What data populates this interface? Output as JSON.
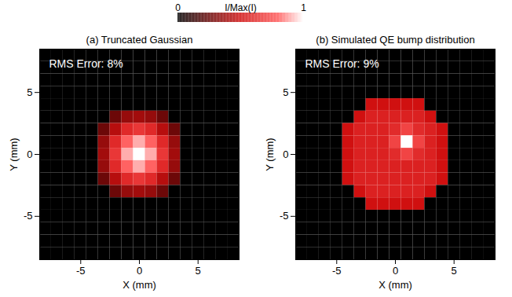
{
  "colorbar": {
    "label": "I/Max(I)",
    "range": [
      0,
      1
    ],
    "ticks": [
      0,
      1
    ]
  },
  "chart_data": [
    {
      "type": "heatmap",
      "title": "(a) Truncated Gaussian",
      "x_label": "X (mm)",
      "y_label": "Y (mm)",
      "annotation": "RMS Error: 8%",
      "xlim": [
        -8.5,
        8.5
      ],
      "ylim": [
        -8.5,
        8.5
      ],
      "xticks": [
        -5,
        0,
        5
      ],
      "yticks": [
        -5,
        0,
        5
      ],
      "x": [
        -8,
        -7,
        -6,
        -5,
        -4,
        -3,
        -2,
        -1,
        0,
        1,
        2,
        3,
        4,
        5,
        6,
        7,
        8
      ],
      "y": [
        8,
        7,
        6,
        5,
        4,
        3,
        2,
        1,
        0,
        -1,
        -2,
        -3,
        -4,
        -5,
        -6,
        -7,
        -8
      ],
      "values": [
        [
          0,
          0,
          0,
          0,
          0,
          0,
          0,
          0,
          0,
          0,
          0,
          0,
          0,
          0,
          0,
          0,
          0
        ],
        [
          0,
          0,
          0,
          0,
          0,
          0,
          0,
          0,
          0,
          0,
          0,
          0,
          0,
          0,
          0,
          0,
          0
        ],
        [
          0,
          0,
          0,
          0,
          0,
          0,
          0,
          0,
          0,
          0,
          0,
          0,
          0,
          0,
          0,
          0,
          0
        ],
        [
          0,
          0,
          0,
          0,
          0,
          0,
          0,
          0,
          0,
          0,
          0,
          0,
          0,
          0,
          0,
          0,
          0
        ],
        [
          0,
          0,
          0,
          0,
          0,
          0,
          0,
          0,
          0,
          0,
          0,
          0,
          0,
          0,
          0,
          0,
          0
        ],
        [
          0,
          0,
          0,
          0,
          0,
          0,
          0.26,
          0.36,
          0.39,
          0.36,
          0.26,
          0,
          0,
          0,
          0,
          0,
          0
        ],
        [
          0,
          0,
          0,
          0,
          0,
          0.26,
          0.44,
          0.6,
          0.66,
          0.6,
          0.44,
          0.26,
          0,
          0,
          0,
          0,
          0
        ],
        [
          0,
          0,
          0,
          0,
          0,
          0.36,
          0.6,
          0.81,
          0.9,
          0.81,
          0.6,
          0.36,
          0,
          0,
          0,
          0,
          0
        ],
        [
          0,
          0,
          0,
          0,
          0,
          0.39,
          0.66,
          0.9,
          1,
          0.9,
          0.66,
          0.39,
          0,
          0,
          0,
          0,
          0
        ],
        [
          0,
          0,
          0,
          0,
          0,
          0.36,
          0.6,
          0.81,
          0.9,
          0.81,
          0.6,
          0.36,
          0,
          0,
          0,
          0,
          0
        ],
        [
          0,
          0,
          0,
          0,
          0,
          0.26,
          0.44,
          0.6,
          0.66,
          0.6,
          0.44,
          0.26,
          0,
          0,
          0,
          0,
          0
        ],
        [
          0,
          0,
          0,
          0,
          0,
          0,
          0.26,
          0.36,
          0.39,
          0.36,
          0.26,
          0,
          0,
          0,
          0,
          0,
          0
        ],
        [
          0,
          0,
          0,
          0,
          0,
          0,
          0,
          0,
          0,
          0,
          0,
          0,
          0,
          0,
          0,
          0,
          0
        ],
        [
          0,
          0,
          0,
          0,
          0,
          0,
          0,
          0,
          0,
          0,
          0,
          0,
          0,
          0,
          0,
          0,
          0
        ],
        [
          0,
          0,
          0,
          0,
          0,
          0,
          0,
          0,
          0,
          0,
          0,
          0,
          0,
          0,
          0,
          0,
          0
        ],
        [
          0,
          0,
          0,
          0,
          0,
          0,
          0,
          0,
          0,
          0,
          0,
          0,
          0,
          0,
          0,
          0,
          0
        ],
        [
          0,
          0,
          0,
          0,
          0,
          0,
          0,
          0,
          0,
          0,
          0,
          0,
          0,
          0,
          0,
          0,
          0
        ]
      ]
    },
    {
      "type": "heatmap",
      "title": "(b) Simulated QE bump distribution",
      "x_label": "X (mm)",
      "y_label": "Y (mm)",
      "annotation": "RMS Error: 9%",
      "xlim": [
        -8.5,
        8.5
      ],
      "ylim": [
        -8.5,
        8.5
      ],
      "xticks": [
        -5,
        0,
        5
      ],
      "yticks": [
        -5,
        0,
        5
      ],
      "x": [
        -8,
        -7,
        -6,
        -5,
        -4,
        -3,
        -2,
        -1,
        0,
        1,
        2,
        3,
        4,
        5,
        6,
        7,
        8
      ],
      "y": [
        8,
        7,
        6,
        5,
        4,
        3,
        2,
        1,
        0,
        -1,
        -2,
        -3,
        -4,
        -5,
        -6,
        -7,
        -8
      ],
      "values": [
        [
          0,
          0,
          0,
          0,
          0,
          0,
          0,
          0,
          0,
          0,
          0,
          0,
          0,
          0,
          0,
          0,
          0
        ],
        [
          0,
          0,
          0,
          0,
          0,
          0,
          0,
          0,
          0,
          0,
          0,
          0,
          0,
          0,
          0,
          0,
          0
        ],
        [
          0,
          0,
          0,
          0,
          0,
          0,
          0,
          0,
          0,
          0,
          0,
          0,
          0,
          0,
          0,
          0,
          0
        ],
        [
          0,
          0,
          0,
          0,
          0,
          0,
          0,
          0,
          0,
          0,
          0,
          0,
          0,
          0,
          0,
          0,
          0
        ],
        [
          0,
          0,
          0,
          0,
          0,
          0,
          0.5,
          0.5,
          0.5,
          0.5,
          0.5,
          0,
          0,
          0,
          0,
          0,
          0
        ],
        [
          0,
          0,
          0,
          0,
          0,
          0.5,
          0.57,
          0.57,
          0.57,
          0.57,
          0.57,
          0.5,
          0,
          0,
          0,
          0,
          0
        ],
        [
          0,
          0,
          0,
          0,
          0.5,
          0.57,
          0.57,
          0.57,
          0.61,
          0.71,
          0.61,
          0.57,
          0.5,
          0,
          0,
          0,
          0
        ],
        [
          0,
          0,
          0,
          0,
          0.5,
          0.57,
          0.57,
          0.57,
          0.71,
          1,
          0.71,
          0.57,
          0.5,
          0,
          0,
          0,
          0
        ],
        [
          0,
          0,
          0,
          0,
          0.5,
          0.57,
          0.57,
          0.57,
          0.61,
          0.71,
          0.61,
          0.57,
          0.5,
          0,
          0,
          0,
          0
        ],
        [
          0,
          0,
          0,
          0,
          0.5,
          0.57,
          0.57,
          0.57,
          0.57,
          0.57,
          0.57,
          0.57,
          0.5,
          0,
          0,
          0,
          0
        ],
        [
          0,
          0,
          0,
          0,
          0.5,
          0.57,
          0.57,
          0.57,
          0.57,
          0.57,
          0.57,
          0.57,
          0.5,
          0,
          0,
          0,
          0
        ],
        [
          0,
          0,
          0,
          0,
          0,
          0.5,
          0.57,
          0.57,
          0.57,
          0.57,
          0.57,
          0.5,
          0,
          0,
          0,
          0,
          0
        ],
        [
          0,
          0,
          0,
          0,
          0,
          0,
          0.5,
          0.5,
          0.5,
          0.5,
          0.5,
          0,
          0,
          0,
          0,
          0,
          0
        ],
        [
          0,
          0,
          0,
          0,
          0,
          0,
          0,
          0,
          0,
          0,
          0,
          0,
          0,
          0,
          0,
          0,
          0
        ],
        [
          0,
          0,
          0,
          0,
          0,
          0,
          0,
          0,
          0,
          0,
          0,
          0,
          0,
          0,
          0,
          0,
          0
        ],
        [
          0,
          0,
          0,
          0,
          0,
          0,
          0,
          0,
          0,
          0,
          0,
          0,
          0,
          0,
          0,
          0,
          0
        ],
        [
          0,
          0,
          0,
          0,
          0,
          0,
          0,
          0,
          0,
          0,
          0,
          0,
          0,
          0,
          0,
          0,
          0
        ]
      ]
    }
  ]
}
